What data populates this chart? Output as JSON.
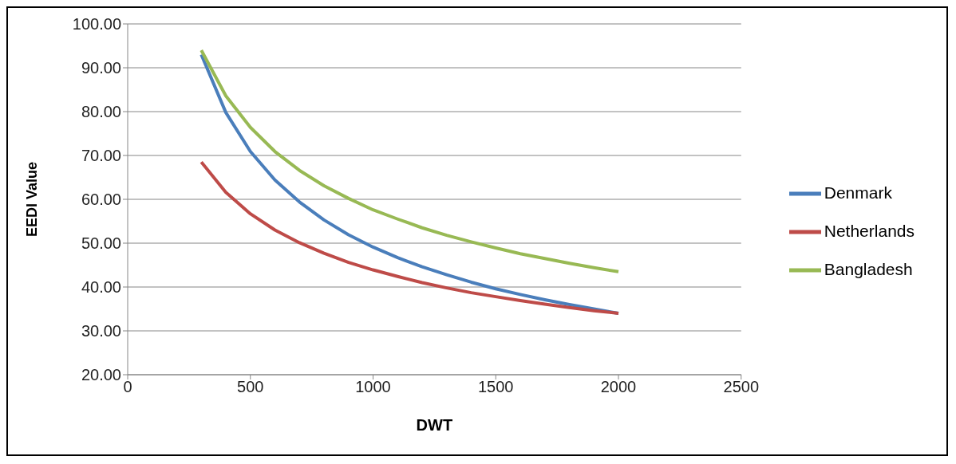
{
  "chart_data": {
    "type": "line",
    "xlabel": "DWT",
    "ylabel": "EEDI Value",
    "x": [
      300,
      400,
      500,
      600,
      700,
      800,
      900,
      1000,
      1100,
      1200,
      1300,
      1400,
      1500,
      1600,
      1700,
      1800,
      1900,
      2000
    ],
    "series": [
      {
        "name": "Denmark",
        "color": "#4a7ebb",
        "values": [
          93.0,
          79.8,
          70.9,
          64.4,
          59.4,
          55.3,
          51.9,
          49.1,
          46.7,
          44.6,
          42.8,
          41.1,
          39.6,
          38.3,
          37.1,
          36.0,
          35.0,
          34.0
        ]
      },
      {
        "name": "Netherlands",
        "color": "#be4b48",
        "values": [
          68.5,
          61.6,
          56.7,
          53.0,
          50.1,
          47.7,
          45.6,
          43.9,
          42.4,
          41.0,
          39.8,
          38.7,
          37.8,
          36.9,
          36.1,
          35.3,
          34.6,
          34.0
        ]
      },
      {
        "name": "Bangladesh",
        "color": "#98b954",
        "values": [
          94.0,
          83.6,
          76.4,
          70.9,
          66.6,
          63.1,
          60.2,
          57.6,
          55.5,
          53.5,
          51.8,
          50.3,
          48.9,
          47.6,
          46.5,
          45.4,
          44.4,
          43.5
        ]
      }
    ],
    "xlim": [
      0,
      2500
    ],
    "xticks": [
      0,
      500,
      1000,
      1500,
      2000,
      2500
    ],
    "ylim": [
      20,
      100
    ],
    "yticks": [
      {
        "value": 20,
        "label": "20.00"
      },
      {
        "value": 30,
        "label": "30.00"
      },
      {
        "value": 40,
        "label": "40.00"
      },
      {
        "value": 50,
        "label": "50.00"
      },
      {
        "value": 60,
        "label": "60.00"
      },
      {
        "value": 70,
        "label": "70.00"
      },
      {
        "value": 80,
        "label": "80.00"
      },
      {
        "value": 90,
        "label": "90.00"
      },
      {
        "value": 100,
        "label": "100.00"
      }
    ],
    "grid": "y",
    "legend": "right",
    "marker": "none",
    "line_style": "solid"
  }
}
